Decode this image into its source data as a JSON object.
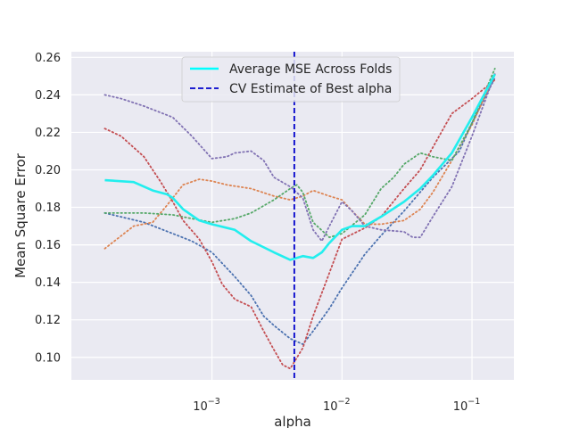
{
  "chart_data": {
    "type": "line",
    "title": "",
    "xlabel": "alpha",
    "ylabel": "Mean Square Error",
    "x_scale": "log",
    "xlim": [
      8.3e-05,
      0.21
    ],
    "ylim": [
      0.088,
      0.263
    ],
    "x_ticks": [
      {
        "value": 0.001,
        "base": "10",
        "exp": "−3"
      },
      {
        "value": 0.01,
        "base": "10",
        "exp": "−2"
      },
      {
        "value": 0.1,
        "base": "10",
        "exp": "−1"
      }
    ],
    "y_ticks": [
      0.1,
      0.12,
      0.14,
      0.16,
      0.18,
      0.2,
      0.22,
      0.24,
      0.26
    ],
    "y_tick_labels": [
      "0.10",
      "0.12",
      "0.14",
      "0.16",
      "0.18",
      "0.20",
      "0.22",
      "0.24",
      "0.26"
    ],
    "grid": true,
    "legend": {
      "position": "top-center",
      "entries": [
        {
          "label": "Average MSE Across Folds",
          "style": "solid",
          "color": "#00ffff"
        },
        {
          "label": "CV Estimate of Best alpha",
          "style": "dashed",
          "color": "#0000cc"
        }
      ]
    },
    "best_alpha": 0.0043,
    "average_series": {
      "color": "#22eeee",
      "points": [
        [
          0.00015,
          0.1945
        ],
        [
          0.00025,
          0.1935
        ],
        [
          0.00035,
          0.189
        ],
        [
          0.00045,
          0.187
        ],
        [
          0.0005,
          0.185
        ],
        [
          0.0006,
          0.179
        ],
        [
          0.0008,
          0.173
        ],
        [
          0.001,
          0.171
        ],
        [
          0.0015,
          0.168
        ],
        [
          0.002,
          0.162
        ],
        [
          0.003,
          0.156
        ],
        [
          0.004,
          0.152
        ],
        [
          0.005,
          0.154
        ],
        [
          0.006,
          0.153
        ],
        [
          0.007,
          0.156
        ],
        [
          0.008,
          0.161
        ],
        [
          0.01,
          0.168
        ],
        [
          0.012,
          0.17
        ],
        [
          0.015,
          0.17
        ],
        [
          0.02,
          0.175
        ],
        [
          0.03,
          0.183
        ],
        [
          0.04,
          0.19
        ],
        [
          0.05,
          0.197
        ],
        [
          0.07,
          0.209
        ],
        [
          0.1,
          0.228
        ],
        [
          0.15,
          0.251
        ]
      ]
    },
    "fold_series": [
      {
        "color": "#4c72b0",
        "points": [
          [
            0.00015,
            0.177
          ],
          [
            0.0003,
            0.172
          ],
          [
            0.0005,
            0.166
          ],
          [
            0.0007,
            0.162
          ],
          [
            0.001,
            0.156
          ],
          [
            0.0015,
            0.143
          ],
          [
            0.002,
            0.133
          ],
          [
            0.0025,
            0.122
          ],
          [
            0.003,
            0.117
          ],
          [
            0.004,
            0.11
          ],
          [
            0.005,
            0.107
          ],
          [
            0.006,
            0.114
          ],
          [
            0.008,
            0.126
          ],
          [
            0.01,
            0.137
          ],
          [
            0.015,
            0.155
          ],
          [
            0.02,
            0.165
          ],
          [
            0.03,
            0.178
          ],
          [
            0.05,
            0.196
          ],
          [
            0.08,
            0.21
          ],
          [
            0.1,
            0.225
          ],
          [
            0.15,
            0.249
          ]
        ]
      },
      {
        "color": "#dd8452",
        "points": [
          [
            0.00015,
            0.158
          ],
          [
            0.00025,
            0.17
          ],
          [
            0.00035,
            0.172
          ],
          [
            0.00045,
            0.181
          ],
          [
            0.0006,
            0.192
          ],
          [
            0.0008,
            0.195
          ],
          [
            0.001,
            0.194
          ],
          [
            0.0013,
            0.192
          ],
          [
            0.002,
            0.19
          ],
          [
            0.003,
            0.186
          ],
          [
            0.004,
            0.184
          ],
          [
            0.005,
            0.186
          ],
          [
            0.006,
            0.189
          ],
          [
            0.008,
            0.186
          ],
          [
            0.01,
            0.184
          ],
          [
            0.012,
            0.178
          ],
          [
            0.015,
            0.171
          ],
          [
            0.02,
            0.171
          ],
          [
            0.03,
            0.173
          ],
          [
            0.04,
            0.179
          ],
          [
            0.05,
            0.188
          ],
          [
            0.07,
            0.205
          ],
          [
            0.1,
            0.224
          ],
          [
            0.15,
            0.251
          ]
        ]
      },
      {
        "color": "#55a868",
        "points": [
          [
            0.00015,
            0.177
          ],
          [
            0.0003,
            0.177
          ],
          [
            0.0005,
            0.176
          ],
          [
            0.0007,
            0.174
          ],
          [
            0.001,
            0.172
          ],
          [
            0.0015,
            0.174
          ],
          [
            0.002,
            0.177
          ],
          [
            0.003,
            0.184
          ],
          [
            0.004,
            0.19
          ],
          [
            0.0045,
            0.192
          ],
          [
            0.005,
            0.188
          ],
          [
            0.006,
            0.172
          ],
          [
            0.008,
            0.164
          ],
          [
            0.01,
            0.166
          ],
          [
            0.015,
            0.176
          ],
          [
            0.02,
            0.19
          ],
          [
            0.025,
            0.196
          ],
          [
            0.03,
            0.203
          ],
          [
            0.04,
            0.209
          ],
          [
            0.05,
            0.207
          ],
          [
            0.07,
            0.205
          ],
          [
            0.1,
            0.225
          ],
          [
            0.15,
            0.254
          ]
        ]
      },
      {
        "color": "#c44e52",
        "points": [
          [
            0.00015,
            0.222
          ],
          [
            0.0002,
            0.218
          ],
          [
            0.0003,
            0.207
          ],
          [
            0.0004,
            0.194
          ],
          [
            0.0005,
            0.183
          ],
          [
            0.0006,
            0.173
          ],
          [
            0.0008,
            0.163
          ],
          [
            0.001,
            0.151
          ],
          [
            0.0012,
            0.139
          ],
          [
            0.0015,
            0.131
          ],
          [
            0.002,
            0.127
          ],
          [
            0.0025,
            0.114
          ],
          [
            0.003,
            0.104
          ],
          [
            0.0035,
            0.096
          ],
          [
            0.004,
            0.094
          ],
          [
            0.005,
            0.105
          ],
          [
            0.006,
            0.122
          ],
          [
            0.008,
            0.145
          ],
          [
            0.01,
            0.163
          ],
          [
            0.015,
            0.169
          ],
          [
            0.02,
            0.175
          ],
          [
            0.03,
            0.19
          ],
          [
            0.04,
            0.2
          ],
          [
            0.05,
            0.212
          ],
          [
            0.07,
            0.23
          ],
          [
            0.1,
            0.238
          ],
          [
            0.15,
            0.248
          ]
        ]
      },
      {
        "color": "#8172b3",
        "points": [
          [
            0.00015,
            0.24
          ],
          [
            0.0002,
            0.238
          ],
          [
            0.0003,
            0.234
          ],
          [
            0.0005,
            0.228
          ],
          [
            0.0007,
            0.218
          ],
          [
            0.001,
            0.206
          ],
          [
            0.0013,
            0.207
          ],
          [
            0.0015,
            0.209
          ],
          [
            0.002,
            0.21
          ],
          [
            0.0025,
            0.205
          ],
          [
            0.003,
            0.196
          ],
          [
            0.004,
            0.191
          ],
          [
            0.005,
            0.185
          ],
          [
            0.006,
            0.168
          ],
          [
            0.007,
            0.162
          ],
          [
            0.008,
            0.17
          ],
          [
            0.01,
            0.183
          ],
          [
            0.012,
            0.178
          ],
          [
            0.015,
            0.17
          ],
          [
            0.02,
            0.168
          ],
          [
            0.03,
            0.167
          ],
          [
            0.035,
            0.164
          ],
          [
            0.04,
            0.164
          ],
          [
            0.05,
            0.175
          ],
          [
            0.07,
            0.191
          ],
          [
            0.1,
            0.218
          ],
          [
            0.15,
            0.251
          ]
        ]
      }
    ]
  }
}
